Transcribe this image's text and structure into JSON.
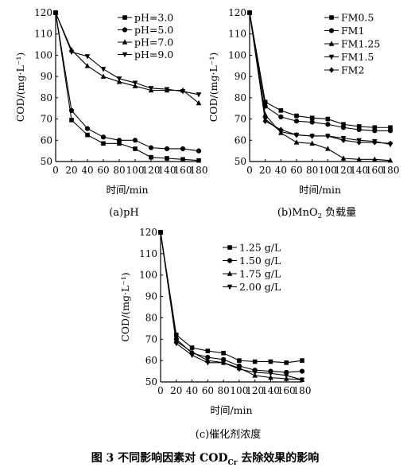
{
  "figure_caption": "图 3    不同影响因素对 COD",
  "figure_caption_sub": "Cr",
  "figure_caption_tail": " 去除效果的影响",
  "chart_data": [
    {
      "type": "line",
      "caption": "(a)pH",
      "xlabel": "时间/min",
      "ylabel": "COD/(mg·L⁻¹)",
      "xlim": [
        0,
        180
      ],
      "ylim": [
        50,
        120
      ],
      "xticks": [
        0,
        20,
        40,
        60,
        80,
        100,
        120,
        140,
        160,
        180
      ],
      "yticks": [
        50,
        60,
        70,
        80,
        90,
        100,
        110,
        120
      ],
      "legend_position": "top-right",
      "x": [
        0,
        20,
        40,
        60,
        80,
        100,
        120,
        140,
        160,
        180
      ],
      "series": [
        {
          "name": "pH=3.0",
          "marker": "square",
          "values": [
            120,
            69.5,
            62.5,
            58.5,
            58.5,
            56,
            52,
            51.5,
            51,
            50.5
          ]
        },
        {
          "name": "pH=5.0",
          "marker": "circle",
          "values": [
            120,
            74,
            65.5,
            61.5,
            60,
            60,
            56.5,
            56,
            56,
            55
          ]
        },
        {
          "name": "pH=7.0",
          "marker": "triangle",
          "values": [
            120,
            102.5,
            95,
            90,
            87.5,
            85.5,
            83.5,
            83.5,
            83.5,
            77.5
          ]
        },
        {
          "name": "pH=9.0",
          "marker": "down-triangle",
          "values": [
            120,
            101.5,
            99.5,
            93.5,
            89,
            87,
            84.5,
            84,
            83,
            81.5
          ]
        }
      ]
    },
    {
      "type": "line",
      "caption": "(b)MnO",
      "caption_sub": "2",
      "caption_tail": " 负载量",
      "xlabel": "时间/min",
      "ylabel": "COD/(mg·L⁻¹)",
      "xlim": [
        0,
        180
      ],
      "ylim": [
        50,
        120
      ],
      "xticks": [
        0,
        20,
        40,
        60,
        80,
        100,
        120,
        140,
        160,
        180
      ],
      "yticks": [
        50,
        60,
        70,
        80,
        90,
        100,
        110,
        120
      ],
      "legend_position": "top-right",
      "x": [
        0,
        20,
        40,
        60,
        80,
        100,
        120,
        140,
        160,
        180
      ],
      "series": [
        {
          "name": "FM0.5",
          "marker": "square",
          "values": [
            120,
            78,
            74,
            71.5,
            70.5,
            70,
            67.5,
            66.5,
            66,
            66
          ]
        },
        {
          "name": "FM1",
          "marker": "circle",
          "values": [
            120,
            76,
            71,
            69,
            68.5,
            67.5,
            66,
            65,
            64.5,
            64.5
          ]
        },
        {
          "name": "FM1.25",
          "marker": "triangle",
          "values": [
            120,
            72,
            63.5,
            59,
            58.5,
            56,
            51.5,
            51,
            51,
            50.5
          ]
        },
        {
          "name": "FM1.5",
          "marker": "down-triangle",
          "values": [
            120,
            70,
            64,
            62.5,
            62,
            62,
            61,
            60,
            59.5,
            58
          ]
        },
        {
          "name": "FM2",
          "marker": "diamond",
          "values": [
            120,
            69,
            65,
            62.5,
            62,
            62,
            60,
            59,
            59,
            58.5
          ]
        }
      ]
    },
    {
      "type": "line",
      "caption": "(c)催化剂浓度",
      "xlabel": "时间/min",
      "ylabel": "COD/(mg·L⁻¹)",
      "xlim": [
        0,
        180
      ],
      "ylim": [
        50,
        120
      ],
      "xticks": [
        0,
        20,
        40,
        60,
        80,
        100,
        120,
        140,
        160,
        180
      ],
      "yticks": [
        50,
        60,
        70,
        80,
        90,
        100,
        110,
        120
      ],
      "legend_position": "top-right",
      "x": [
        0,
        20,
        40,
        60,
        80,
        100,
        120,
        140,
        160,
        180
      ],
      "series": [
        {
          "name": "1.25 g/L",
          "marker": "square",
          "values": [
            120,
            72,
            66,
            64.5,
            63.5,
            60,
            59.5,
            59.5,
            59,
            60
          ]
        },
        {
          "name": "1.50 g/L",
          "marker": "circle",
          "values": [
            120,
            70,
            63.5,
            61.5,
            60.5,
            57.5,
            55.5,
            55,
            54.5,
            55
          ]
        },
        {
          "name": "1.75 g/L",
          "marker": "triangle",
          "values": [
            120,
            69,
            64,
            60,
            59,
            56.5,
            53,
            52,
            51.5,
            51
          ]
        },
        {
          "name": "2.00 g/L",
          "marker": "down-triangle",
          "values": [
            120,
            68,
            62.5,
            59,
            59,
            56,
            54.5,
            54,
            53,
            51
          ]
        }
      ]
    }
  ]
}
